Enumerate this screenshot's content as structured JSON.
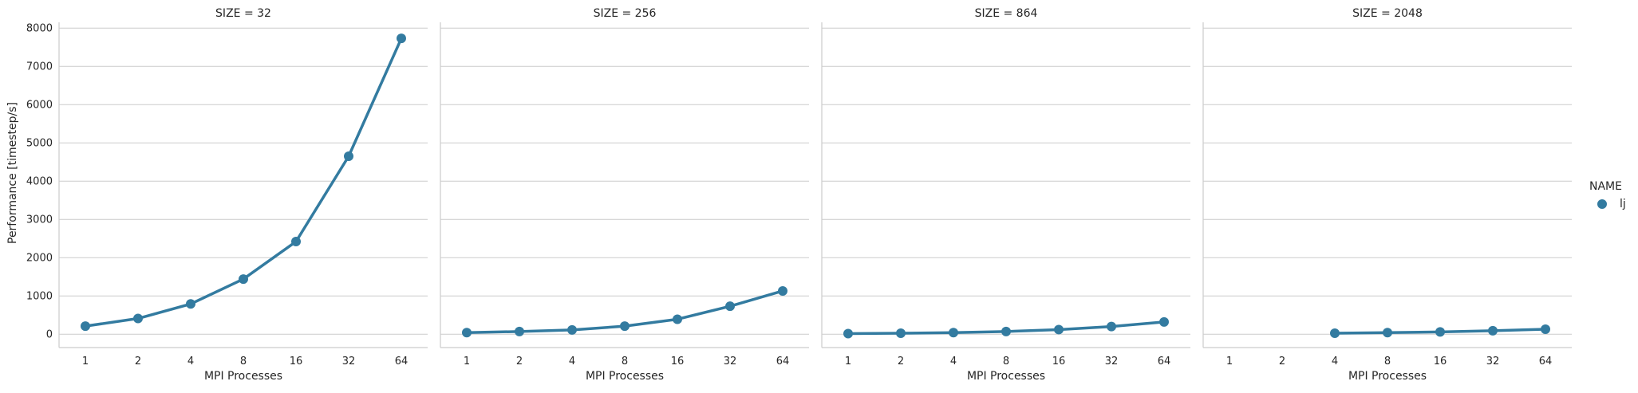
{
  "chart_data": {
    "type": "line",
    "ylabel": "Performance [timestep/s]",
    "xlabel": "MPI Processes",
    "categories": [
      "1",
      "2",
      "4",
      "8",
      "16",
      "32",
      "64"
    ],
    "ylim": [
      -350,
      8150
    ],
    "yticks": [
      0,
      1000,
      2000,
      3000,
      4000,
      5000,
      6000,
      7000,
      8000
    ],
    "grid": "horizontal",
    "color": "#337ba0",
    "legend": {
      "title": "NAME",
      "placement": "right",
      "entries": [
        "lj"
      ]
    },
    "panels": [
      {
        "title": "SIZE = 32",
        "series": [
          {
            "name": "lj",
            "values": [
              210,
              410,
              790,
              1440,
              2420,
              4650,
              7730
            ]
          }
        ]
      },
      {
        "title": "SIZE = 256",
        "series": [
          {
            "name": "lj",
            "values": [
              40,
              70,
              110,
              210,
              390,
              730,
              1130
            ]
          }
        ]
      },
      {
        "title": "SIZE = 864",
        "series": [
          {
            "name": "lj",
            "values": [
              15,
              25,
              40,
              70,
              120,
              200,
              320
            ]
          }
        ]
      },
      {
        "title": "SIZE = 2048",
        "series": [
          {
            "name": "lj",
            "values": [
              null,
              null,
              25,
              40,
              60,
              90,
              130
            ]
          }
        ]
      }
    ]
  }
}
